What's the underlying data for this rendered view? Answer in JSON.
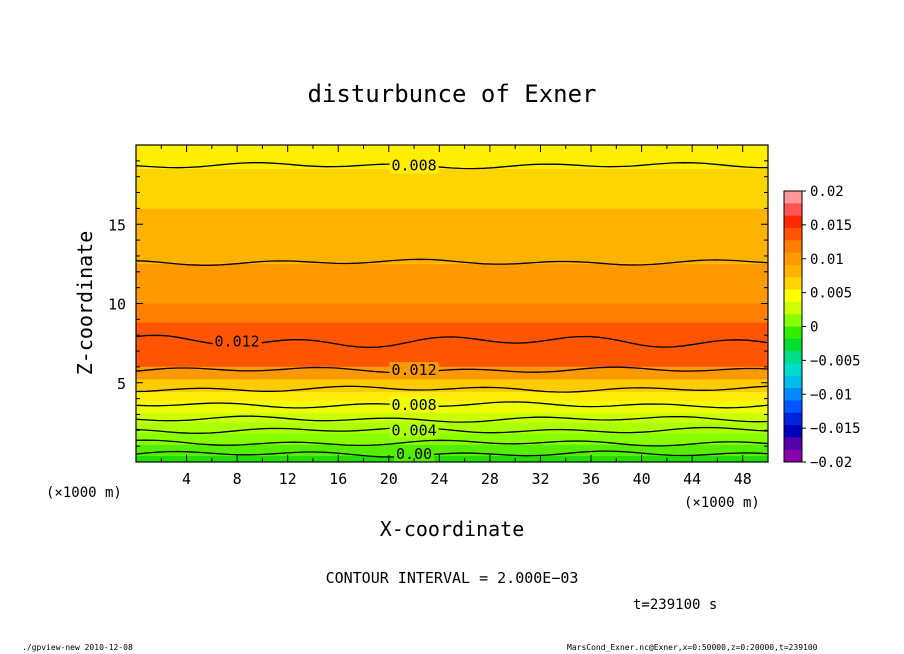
{
  "chart_data": {
    "type": "heatmap",
    "title": "disturbunce of Exner",
    "xlabel": "X-coordinate",
    "ylabel": "Z-coordinate",
    "x_unit_left": "(×1000 m)",
    "x_unit_right": "(×1000 m)",
    "xlim": [
      0,
      50
    ],
    "ylim": [
      0,
      20
    ],
    "x_ticks": [
      4,
      8,
      12,
      16,
      20,
      24,
      28,
      32,
      36,
      40,
      44,
      48
    ],
    "y_ticks": [
      5,
      10,
      15
    ],
    "colorbar": {
      "min": -0.02,
      "max": 0.02,
      "labels": [
        "0.02",
        "0.015",
        "0.01",
        "0.005",
        "0",
        "−0.005",
        "−0.01",
        "−0.015",
        "−0.02"
      ],
      "label_values": [
        0.02,
        0.015,
        0.01,
        0.005,
        0,
        -0.005,
        -0.01,
        -0.015,
        -0.02
      ],
      "colors": [
        "#ff9999",
        "#ff5555",
        "#ff2a00",
        "#ff5500",
        "#ff7f00",
        "#ff9900",
        "#ffb300",
        "#ffd500",
        "#ffff00",
        "#ccff00",
        "#88ff00",
        "#33ee00",
        "#00dd33",
        "#00dd88",
        "#00ddcc",
        "#00bbee",
        "#0088ff",
        "#0055ff",
        "#0022dd",
        "#0000bb",
        "#5500aa",
        "#8800aa"
      ]
    },
    "field_bands": [
      {
        "z_bottom": 0.0,
        "z_top": 0.4,
        "value": 0.0005,
        "color": "#22dd00"
      },
      {
        "z_bottom": 0.4,
        "z_top": 1.1,
        "value": 0.002,
        "color": "#55ee00"
      },
      {
        "z_bottom": 1.1,
        "z_top": 1.8,
        "value": 0.003,
        "color": "#88ff00"
      },
      {
        "z_bottom": 1.8,
        "z_top": 2.5,
        "value": 0.004,
        "color": "#aaff00"
      },
      {
        "z_bottom": 2.5,
        "z_top": 3.1,
        "value": 0.005,
        "color": "#ccff00"
      },
      {
        "z_bottom": 3.1,
        "z_top": 3.8,
        "value": 0.006,
        "color": "#eeff00"
      },
      {
        "z_bottom": 3.8,
        "z_top": 4.4,
        "value": 0.007,
        "color": "#ffee00"
      },
      {
        "z_bottom": 4.4,
        "z_top": 5.2,
        "value": 0.008,
        "color": "#ffcc00"
      },
      {
        "z_bottom": 5.2,
        "z_top": 6.0,
        "value": 0.01,
        "color": "#ff9900"
      },
      {
        "z_bottom": 6.0,
        "z_top": 8.8,
        "value": 0.0125,
        "color": "#ff5500"
      },
      {
        "z_bottom": 8.8,
        "z_top": 10.0,
        "value": 0.011,
        "color": "#ff7f00"
      },
      {
        "z_bottom": 10.0,
        "z_top": 12.5,
        "value": 0.01,
        "color": "#ff9900"
      },
      {
        "z_bottom": 12.5,
        "z_top": 16.0,
        "value": 0.009,
        "color": "#ffb300"
      },
      {
        "z_bottom": 16.0,
        "z_top": 18.5,
        "value": 0.008,
        "color": "#ffd500"
      },
      {
        "z_bottom": 18.5,
        "z_top": 20.0,
        "value": 0.007,
        "color": "#ffee00"
      }
    ],
    "contours": [
      {
        "value": 0.0,
        "z": 0.5,
        "label": "0.00",
        "label_x": 22
      },
      {
        "value": 0.002,
        "z": 1.2,
        "label": "",
        "label_x": null
      },
      {
        "value": 0.004,
        "z": 2.0,
        "label": "0.004",
        "label_x": 22
      },
      {
        "value": 0.006,
        "z": 2.7,
        "label": "",
        "label_x": null
      },
      {
        "value": 0.008,
        "z": 3.6,
        "label": "0.008",
        "label_x": 22
      },
      {
        "value": 0.01,
        "z": 4.6,
        "label": "",
        "label_x": null
      },
      {
        "value": 0.012,
        "z": 5.8,
        "label": "0.012",
        "label_x": 22
      },
      {
        "value": 0.012,
        "z": 7.6,
        "label": "0.012",
        "label_x": 8
      },
      {
        "value": 0.01,
        "z": 12.6,
        "label": "",
        "label_x": null
      },
      {
        "value": 0.008,
        "z": 18.7,
        "label": "0.008",
        "label_x": 22
      }
    ],
    "contour_interval_text": "CONTOUR INTERVAL = 2.000E−03",
    "time_text": "t=239100 s"
  },
  "footer": {
    "left": "./gpview-new  2010-12-08",
    "right": "MarsCond_Exner.nc@Exner,x=0:50000,z=0:20000,t=239100"
  }
}
